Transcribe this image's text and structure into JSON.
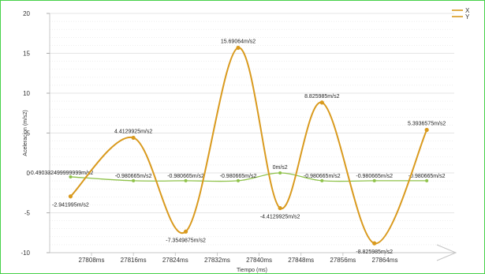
{
  "chart_data": {
    "type": "line",
    "xlabel": "Tiempo (ms)",
    "ylabel": "Aceleracion (m/s2)",
    "categories": [
      "27808ms",
      "27816ms",
      "27824ms",
      "27832ms",
      "27840ms",
      "27848ms",
      "27856ms",
      "27864ms"
    ],
    "ylim": [
      -10,
      20
    ],
    "yticks": [
      -10,
      -5,
      0,
      5,
      10,
      15,
      20
    ],
    "ytick_labels": [
      "-10",
      "-5",
      "0",
      "5",
      "10",
      "15",
      "20"
    ],
    "grid": true,
    "legend_position": "top-right",
    "series": [
      {
        "name": "X",
        "color": "#d99a1e",
        "x": [],
        "labels": []
      },
      {
        "name": "Y",
        "color": "#d99a1e",
        "x": [
          27804,
          27816,
          27826,
          27836,
          27844,
          27852,
          27862,
          27872
        ],
        "values": [
          -2.941995,
          4.4129925,
          -7.3549875,
          15.69064,
          -4.4129925,
          8.825985,
          -8.825985,
          5.3936575
        ],
        "labels": [
          "-2.941995m/s2",
          "4.4129925m/s2",
          "-7.3549875m/s2",
          "15.69064m/s2",
          "-4.4129925m/s2",
          "8.825985m/s2",
          "-8.825985m/s2",
          "5.3936575m/s2"
        ]
      },
      {
        "name": "",
        "color": "#8fc24a",
        "x": [
          27804,
          27816,
          27826,
          27836,
          27844,
          27852,
          27862,
          27872
        ],
        "values": [
          -0.490332499999999,
          -0.980665,
          -0.980665,
          -0.980665,
          0,
          -0.980665,
          -0.980665,
          -0.980665
        ],
        "labels": [
          "-0.490332499999999m/s2",
          "-0.980665m/s2",
          "-0.980665m/s2",
          "-0.980665m/s2",
          "0m/s2",
          "-0.980665m/s2",
          "-0.980665m/s2",
          "-0.980665m/s2"
        ]
      }
    ]
  }
}
